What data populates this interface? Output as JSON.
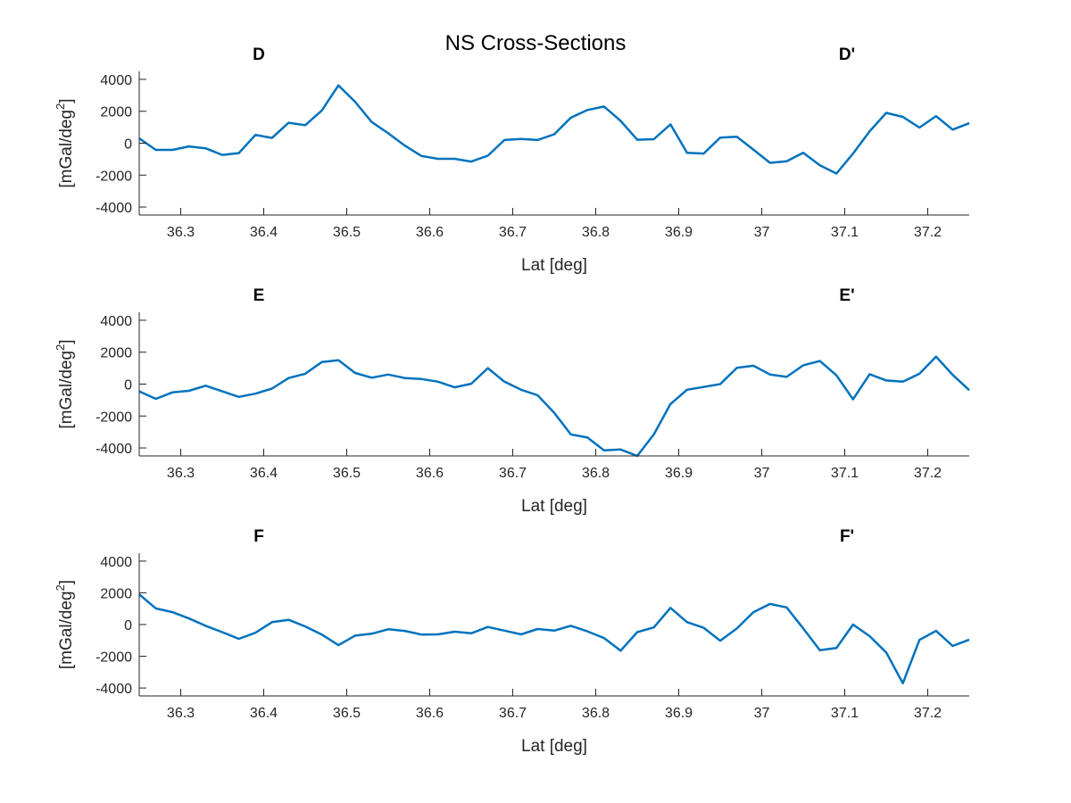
{
  "figure": {
    "title": "NS Cross-Sections",
    "line_color": "#0072BD",
    "axis_color": "#262626"
  },
  "chart_data": [
    {
      "type": "line",
      "start_label": "D",
      "end_label": "D'",
      "xlabel": "Lat [deg]",
      "ylabel": "[mGal/deg",
      "ylabel_sup": "2",
      "ylabel_end": "]",
      "xlim": [
        36.25,
        37.25
      ],
      "ylim": [
        -4500,
        4500
      ],
      "xticks": [
        36.3,
        36.4,
        36.5,
        36.6,
        36.7,
        36.8,
        36.9,
        37.0,
        37.1,
        37.2
      ],
      "xtick_labels": [
        "36.3",
        "36.4",
        "36.5",
        "36.6",
        "36.7",
        "36.8",
        "36.9",
        "37",
        "37.1",
        "37.2"
      ],
      "yticks": [
        -4000,
        -2000,
        0,
        2000,
        4000
      ],
      "ytick_labels": [
        "-4000",
        "-2000",
        "0",
        "2000",
        "4000"
      ],
      "x": [
        36.25,
        36.27,
        36.29,
        36.31,
        36.33,
        36.35,
        36.37,
        36.39,
        36.41,
        36.43,
        36.45,
        36.47,
        36.49,
        36.51,
        36.53,
        36.55,
        36.57,
        36.59,
        36.61,
        36.63,
        36.65,
        36.67,
        36.69,
        36.71,
        36.73,
        36.75,
        36.77,
        36.79,
        36.81,
        36.83,
        36.85,
        36.87,
        36.89,
        36.91,
        36.93,
        36.95,
        36.97,
        36.99,
        37.01,
        37.03,
        37.05,
        37.07,
        37.09,
        37.11,
        37.13,
        37.15,
        37.17,
        37.19,
        37.21,
        37.23,
        37.25
      ],
      "y": [
        300,
        -420,
        -420,
        -200,
        -320,
        -730,
        -620,
        520,
        330,
        1280,
        1130,
        2050,
        3620,
        2600,
        1330,
        620,
        -150,
        -800,
        -980,
        -980,
        -1150,
        -780,
        200,
        270,
        200,
        560,
        1600,
        2080,
        2300,
        1400,
        220,
        250,
        1180,
        -600,
        -650,
        350,
        400,
        -400,
        -1230,
        -1130,
        -600,
        -1380,
        -1900,
        -650,
        750,
        1900,
        1650,
        980,
        1700,
        850,
        1250
      ]
    },
    {
      "type": "line",
      "start_label": "E",
      "end_label": "E'",
      "xlabel": "Lat [deg]",
      "ylabel": "[mGal/deg",
      "ylabel_sup": "2",
      "ylabel_end": "]",
      "xlim": [
        36.25,
        37.25
      ],
      "ylim": [
        -4500,
        4500
      ],
      "xticks": [
        36.3,
        36.4,
        36.5,
        36.6,
        36.7,
        36.8,
        36.9,
        37.0,
        37.1,
        37.2
      ],
      "xtick_labels": [
        "36.3",
        "36.4",
        "36.5",
        "36.6",
        "36.7",
        "36.8",
        "36.9",
        "37",
        "37.1",
        "37.2"
      ],
      "yticks": [
        -4000,
        -2000,
        0,
        2000,
        4000
      ],
      "ytick_labels": [
        "-4000",
        "-2000",
        "0",
        "2000",
        "4000"
      ],
      "x": [
        36.25,
        36.27,
        36.29,
        36.31,
        36.33,
        36.35,
        36.37,
        36.39,
        36.41,
        36.43,
        36.45,
        36.47,
        36.49,
        36.51,
        36.53,
        36.55,
        36.57,
        36.59,
        36.61,
        36.63,
        36.65,
        36.67,
        36.69,
        36.71,
        36.73,
        36.75,
        36.77,
        36.79,
        36.81,
        36.83,
        36.85,
        36.87,
        36.89,
        36.91,
        36.93,
        36.95,
        36.97,
        36.99,
        37.01,
        37.03,
        37.05,
        37.07,
        37.09,
        37.11,
        37.13,
        37.15,
        37.17,
        37.19,
        37.21,
        37.23,
        37.25
      ],
      "y": [
        -450,
        -920,
        -520,
        -420,
        -100,
        -450,
        -800,
        -600,
        -280,
        380,
        650,
        1380,
        1500,
        700,
        400,
        600,
        380,
        320,
        150,
        -200,
        20,
        1000,
        150,
        -350,
        -700,
        -1800,
        -3150,
        -3350,
        -4150,
        -4100,
        -4500,
        -3150,
        -1250,
        -350,
        -180,
        0,
        1020,
        1150,
        600,
        450,
        1180,
        1450,
        550,
        -950,
        620,
        230,
        150,
        650,
        1720,
        580,
        -380
      ]
    },
    {
      "type": "line",
      "start_label": "F",
      "end_label": "F'",
      "xlabel": "Lat [deg]",
      "ylabel": "[mGal/deg",
      "ylabel_sup": "2",
      "ylabel_end": "]",
      "xlim": [
        36.25,
        37.25
      ],
      "ylim": [
        -4500,
        4500
      ],
      "xticks": [
        36.3,
        36.4,
        36.5,
        36.6,
        36.7,
        36.8,
        36.9,
        37.0,
        37.1,
        37.2
      ],
      "xtick_labels": [
        "36.3",
        "36.4",
        "36.5",
        "36.6",
        "36.7",
        "36.8",
        "36.9",
        "37",
        "37.1",
        "37.2"
      ],
      "yticks": [
        -4000,
        -2000,
        0,
        2000,
        4000
      ],
      "ytick_labels": [
        "-4000",
        "-2000",
        "0",
        "2000",
        "4000"
      ],
      "x": [
        36.25,
        36.27,
        36.29,
        36.31,
        36.33,
        36.35,
        36.37,
        36.39,
        36.41,
        36.43,
        36.45,
        36.47,
        36.49,
        36.51,
        36.53,
        36.55,
        36.57,
        36.59,
        36.61,
        36.63,
        36.65,
        36.67,
        36.69,
        36.71,
        36.73,
        36.75,
        36.77,
        36.79,
        36.81,
        36.83,
        36.85,
        36.87,
        36.89,
        36.91,
        36.93,
        36.95,
        36.97,
        36.99,
        37.01,
        37.03,
        37.05,
        37.07,
        37.09,
        37.11,
        37.13,
        37.15,
        37.17,
        37.19,
        37.21,
        37.23,
        37.25
      ],
      "y": [
        1900,
        1020,
        780,
        380,
        -80,
        -480,
        -900,
        -520,
        150,
        300,
        -120,
        -630,
        -1300,
        -700,
        -580,
        -300,
        -400,
        -630,
        -620,
        -450,
        -550,
        -150,
        -380,
        -620,
        -280,
        -380,
        -80,
        -430,
        -850,
        -1650,
        -480,
        -180,
        1050,
        150,
        -200,
        -1020,
        -250,
        780,
        1300,
        1080,
        -250,
        -1620,
        -1480,
        0,
        -730,
        -1760,
        -3700,
        -970,
        -400,
        -1350,
        -950
      ]
    }
  ]
}
